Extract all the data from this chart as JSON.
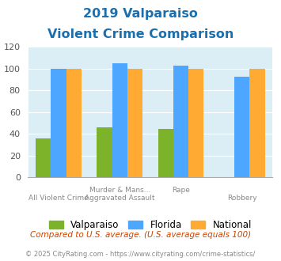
{
  "title_line1": "2019 Valparaiso",
  "title_line2": "Violent Crime Comparison",
  "series": {
    "Valparaiso": [
      36,
      46,
      45,
      0
    ],
    "Florida": [
      100,
      105,
      103,
      93
    ],
    "National": [
      100,
      100,
      100,
      100
    ]
  },
  "colors": {
    "Valparaiso": "#7db32a",
    "Florida": "#4da6ff",
    "National": "#ffaa33"
  },
  "ylim": [
    0,
    120
  ],
  "yticks": [
    0,
    20,
    40,
    60,
    80,
    100,
    120
  ],
  "subtitle": "Compared to U.S. average. (U.S. average equals 100)",
  "footer": "© 2025 CityRating.com - https://www.cityrating.com/crime-statistics/",
  "title_color": "#1a6faf",
  "subtitle_color": "#cc4400",
  "footer_color": "#888888",
  "bg_color": "#dceef5",
  "bar_width": 0.25,
  "group_positions": [
    0,
    1,
    2,
    3
  ],
  "x_top_labels": [
    "",
    "Murder & Mans...",
    "Rape",
    ""
  ],
  "x_bottom_labels": [
    "All Violent Crime",
    "Aggravated Assault",
    "",
    "Robbery"
  ]
}
